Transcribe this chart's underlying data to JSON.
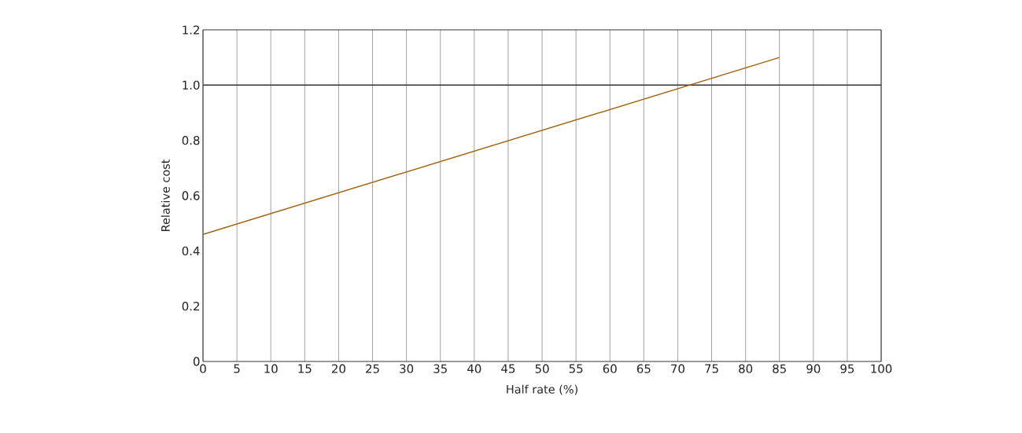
{
  "chart_data": {
    "type": "line",
    "xlabel": "Half rate (%)",
    "ylabel": "Relative cost",
    "x": [
      0,
      85
    ],
    "series": [
      {
        "color": "#a0620f",
        "values": [
          0.46,
          1.1
        ]
      }
    ],
    "xlim": [
      0,
      100
    ],
    "xticks": [
      0,
      5,
      10,
      15,
      20,
      25,
      30,
      35,
      40,
      45,
      50,
      55,
      60,
      65,
      70,
      75,
      80,
      85,
      90,
      95,
      100
    ],
    "ylim": [
      0,
      1.2
    ],
    "yticks": [
      0,
      0.2,
      0.4,
      0.6,
      0.8,
      {
        "value": 1.0,
        "label": "1.0"
      },
      1.2
    ],
    "grid": "x",
    "marker": "none",
    "line_style": "solid",
    "ref_lines": [
      {
        "axis": "y",
        "value": 1.0,
        "color": "#333333"
      }
    ]
  }
}
